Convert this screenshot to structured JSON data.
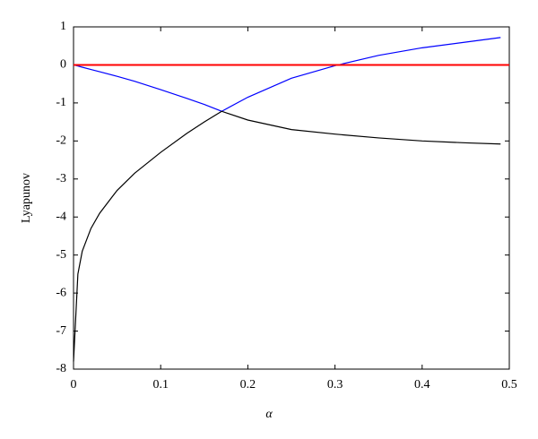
{
  "chart_data": {
    "type": "line",
    "xlabel": "α",
    "ylabel": "Lyapunov",
    "x": [
      0,
      0.005,
      0.01,
      0.02,
      0.03,
      0.05,
      0.07,
      0.1,
      0.13,
      0.15,
      0.17,
      0.2,
      0.25,
      0.3,
      0.35,
      0.4,
      0.45,
      0.49
    ],
    "series": [
      {
        "color": "#0000ff",
        "values": [
          0,
          -0.03,
          -0.06,
          -0.12,
          -0.18,
          -0.3,
          -0.43,
          -0.65,
          -0.88,
          -1.04,
          -1.22,
          -0.85,
          -0.35,
          -0.02,
          0.25,
          0.45,
          0.6,
          0.72
        ]
      },
      {
        "color": "#000000",
        "values": [
          -7.8,
          -5.5,
          -4.9,
          -4.3,
          -3.9,
          -3.3,
          -2.85,
          -2.3,
          -1.8,
          -1.5,
          -1.22,
          -1.45,
          -1.7,
          -1.82,
          -1.92,
          -2.0,
          -2.05,
          -2.08
        ]
      },
      {
        "color": "#ff0000",
        "x": [
          0,
          0.5
        ],
        "values": [
          0,
          0
        ]
      }
    ],
    "xlim": [
      0,
      0.5
    ],
    "xticks": [
      0,
      0.1,
      0.2,
      0.3,
      0.4,
      0.5
    ],
    "ylim": [
      -8,
      1
    ],
    "yticks": [
      -8,
      -7,
      -6,
      -5,
      -4,
      -3,
      -2,
      -1,
      0,
      1
    ],
    "grid": false
  }
}
